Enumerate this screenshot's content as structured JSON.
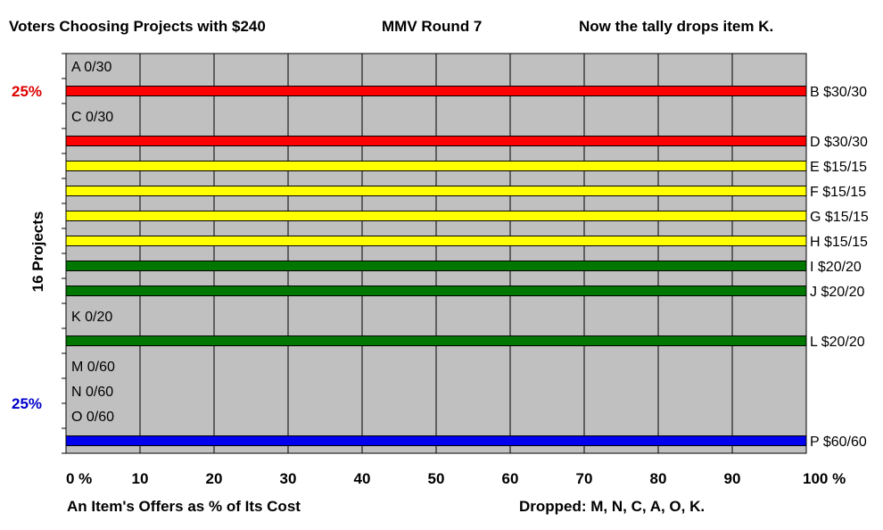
{
  "header": {
    "left": "Voters Choosing Projects with $240",
    "center": "MMV Round 7",
    "right": "Now the tally drops item K."
  },
  "footer": {
    "xlabel": "An Item's Offers as % of Its Cost",
    "dropped": "Dropped: M, N, C, A, O, K."
  },
  "chart_data": {
    "type": "bar",
    "orientation": "horizontal",
    "ylabel": "16 Projects",
    "xlim": [
      0,
      100
    ],
    "x_ticks": [
      "0 %",
      "10",
      "20",
      "30",
      "40",
      "50",
      "60",
      "70",
      "80",
      "90",
      "100 %"
    ],
    "grid": true,
    "side_labels": [
      {
        "text": "25%",
        "color": "#dd0000",
        "row": 1
      },
      {
        "text": "25%",
        "color": "#0000cc",
        "row": 13.5
      }
    ],
    "projects": [
      {
        "label": "A 0/30",
        "value": 0,
        "color": ""
      },
      {
        "label": "B $30/30",
        "value": 100,
        "color": "#ff0000"
      },
      {
        "label": "C 0/30",
        "value": 0,
        "color": ""
      },
      {
        "label": "D $30/30",
        "value": 100,
        "color": "#ff0000"
      },
      {
        "label": "E $15/15",
        "value": 100,
        "color": "#ffff00"
      },
      {
        "label": "F $15/15",
        "value": 100,
        "color": "#ffff00"
      },
      {
        "label": "G $15/15",
        "value": 100,
        "color": "#ffff00"
      },
      {
        "label": "H $15/15",
        "value": 100,
        "color": "#ffff00"
      },
      {
        "label": "I $20/20",
        "value": 100,
        "color": "#007700"
      },
      {
        "label": "J $20/20",
        "value": 100,
        "color": "#007700"
      },
      {
        "label": "K 0/20",
        "value": 0,
        "color": ""
      },
      {
        "label": "L $20/20",
        "value": 100,
        "color": "#007700"
      },
      {
        "label": "M 0/60",
        "value": 0,
        "color": ""
      },
      {
        "label": "N 0/60",
        "value": 0,
        "color": ""
      },
      {
        "label": "O 0/60",
        "value": 0,
        "color": ""
      },
      {
        "label": "P $60/60",
        "value": 100,
        "color": "#0000ee"
      }
    ]
  }
}
